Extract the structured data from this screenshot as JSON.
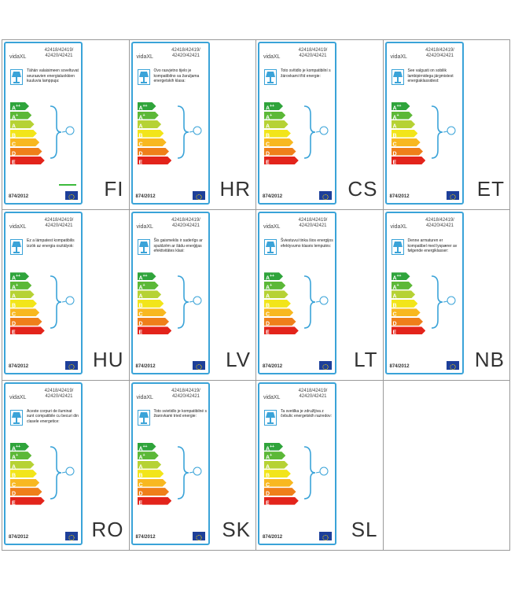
{
  "brand": "vidaXL",
  "model_numbers": [
    "42418/42419/",
    "42420/42421"
  ],
  "regulation": "874/2012",
  "energy_classes": [
    {
      "label": "A",
      "sup": "++",
      "color": "#2fa43b"
    },
    {
      "label": "A",
      "sup": "+",
      "color": "#5cb838"
    },
    {
      "label": "A",
      "sup": "",
      "color": "#b6d234"
    },
    {
      "label": "B",
      "sup": "",
      "color": "#f2e51a"
    },
    {
      "label": "C",
      "sup": "",
      "color": "#f8b820"
    },
    {
      "label": "D",
      "sup": "",
      "color": "#ef7f1a"
    },
    {
      "label": "E",
      "sup": "",
      "color": "#e3241b"
    }
  ],
  "labels": [
    {
      "code": "FI",
      "text": "Tähän valaisimeen soveltuvat seuraavien energialuokkien kuuluvia lamppuja:",
      "green_line": true
    },
    {
      "code": "HR",
      "text": "Ovo rasvjetno tijelo je kompatibilno sa žaruljama energetskih klasa:",
      "green_line": false
    },
    {
      "code": "CS",
      "text": "Toto svítidlo je kompatibilní s žárovkami tříd energie:",
      "green_line": false
    },
    {
      "code": "ET",
      "text": "See valgusti on sobilik lambipirnidega järgmistest energiaklassidest:",
      "green_line": false
    },
    {
      "code": "HU",
      "text": "Ez a lámpatest kompatibilis izzók az energia osztályok:",
      "green_line": false
    },
    {
      "code": "LV",
      "text": "Šis gaismeklis ir saderīgs ar spuldzēm ar šādu enerģijas efektivitātes klasi:",
      "green_line": false
    },
    {
      "code": "LT",
      "text": "Šviestuvui tinka šios energijos efektyvumo klasės lemputės:",
      "green_line": false
    },
    {
      "code": "NB",
      "text": "Denne armaturen er kompatibel med lyspærer av følgende energiklasser:",
      "green_line": false
    },
    {
      "code": "RO",
      "text": "Aceste corpuri de iluminat sunt compatibile cu becuri din clasele energetice:",
      "green_line": false
    },
    {
      "code": "SK",
      "text": "Toto svietidlo je kompatibilné s žiarovkami tried energie:",
      "green_line": false
    },
    {
      "code": "SL",
      "text": "Ta svetilka je združljiva z čebulic energetskih razredov:",
      "green_line": false
    }
  ]
}
